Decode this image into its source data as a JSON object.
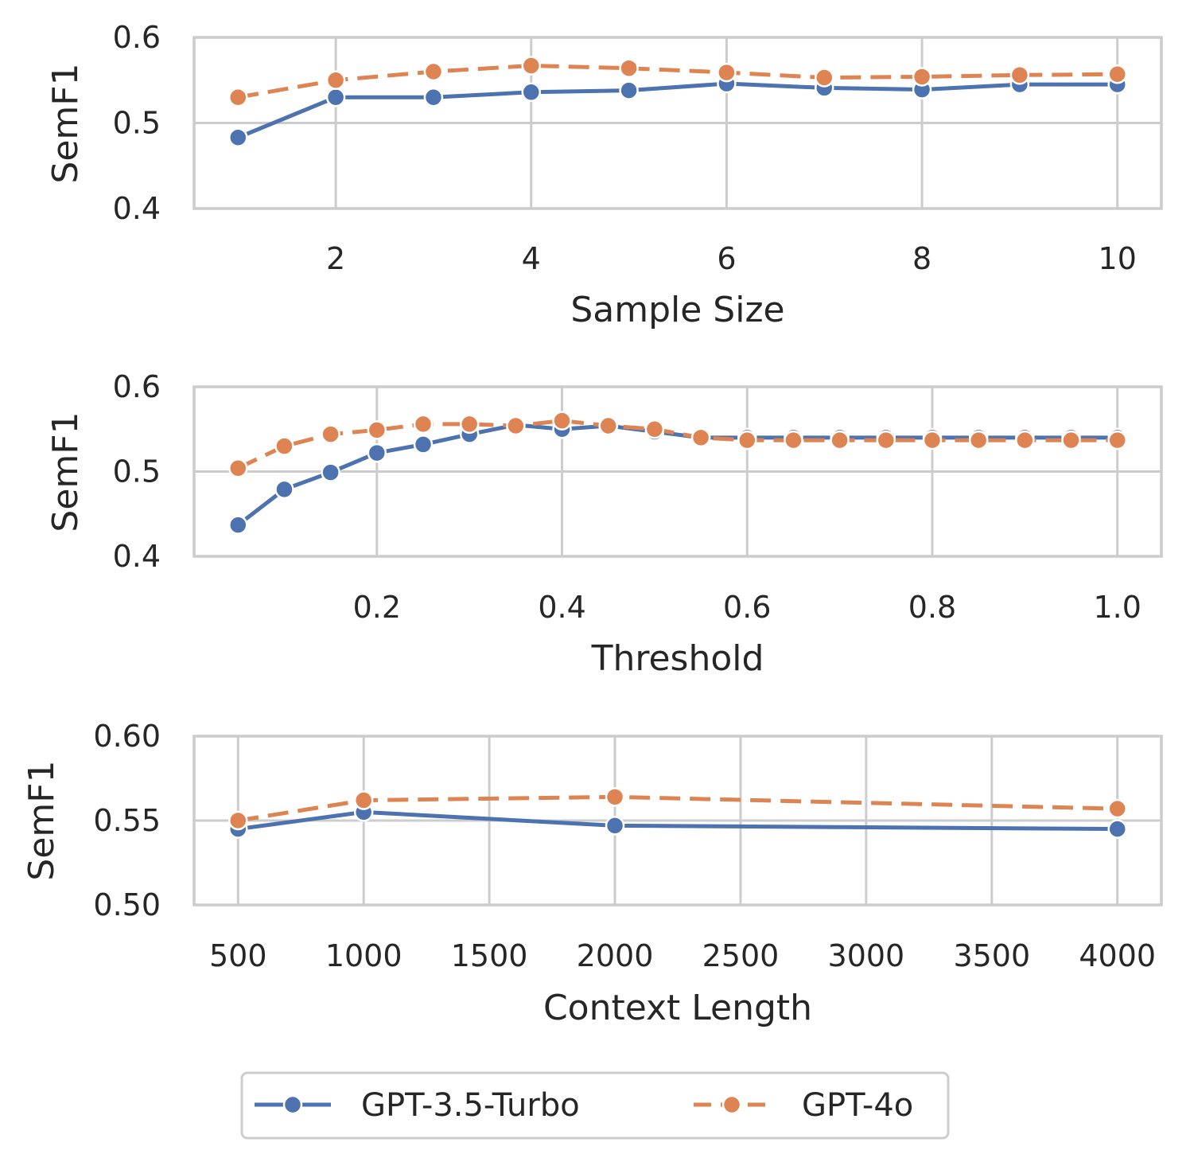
{
  "colors": {
    "series0": "#4c72b0",
    "series1": "#dd8452",
    "grid": "#cccccc",
    "frame": "#cccccc",
    "text": "#262626",
    "background": "#ffffff"
  },
  "legend": {
    "entries": [
      "GPT-3.5-Turbo",
      "GPT-4o"
    ],
    "placement": "bottom-center"
  },
  "chart_data": [
    {
      "type": "line",
      "title": "",
      "xlabel": "Sample Size",
      "ylabel": "SemF1",
      "xlim": [
        0.55,
        10.45
      ],
      "ylim": [
        0.4,
        0.6
      ],
      "xticks": [
        2,
        4,
        6,
        8,
        10
      ],
      "xtick_labels": [
        "2",
        "4",
        "6",
        "8",
        "10"
      ],
      "yticks": [
        0.4,
        0.5,
        0.6
      ],
      "ytick_labels": [
        "0.4",
        "0.5",
        "0.6"
      ],
      "grid": true,
      "x": [
        1,
        2,
        3,
        4,
        5,
        6,
        7,
        8,
        9,
        10
      ],
      "series": [
        {
          "name": "GPT-3.5-Turbo",
          "values": [
            0.483,
            0.53,
            0.53,
            0.536,
            0.538,
            0.546,
            0.541,
            0.539,
            0.545,
            0.545
          ]
        },
        {
          "name": "GPT-4o",
          "values": [
            0.53,
            0.55,
            0.56,
            0.567,
            0.564,
            0.559,
            0.553,
            0.554,
            0.556,
            0.557
          ]
        }
      ]
    },
    {
      "type": "line",
      "title": "",
      "xlabel": "Threshold",
      "ylabel": "SemF1",
      "xlim": [
        0.0025,
        1.0475
      ],
      "ylim": [
        0.4,
        0.6
      ],
      "xticks": [
        0.2,
        0.4,
        0.6,
        0.8,
        1.0
      ],
      "xtick_labels": [
        "0.2",
        "0.4",
        "0.6",
        "0.8",
        "1.0"
      ],
      "yticks": [
        0.4,
        0.5,
        0.6
      ],
      "ytick_labels": [
        "0.4",
        "0.5",
        "0.6"
      ],
      "grid": true,
      "x": [
        0.05,
        0.1,
        0.15,
        0.2,
        0.25,
        0.3,
        0.35,
        0.4,
        0.45,
        0.5,
        0.55,
        0.6,
        0.65,
        0.7,
        0.75,
        0.8,
        0.85,
        0.9,
        0.95,
        1.0
      ],
      "series": [
        {
          "name": "GPT-3.5-Turbo",
          "values": [
            0.437,
            0.479,
            0.499,
            0.522,
            0.532,
            0.544,
            0.555,
            0.55,
            0.554,
            0.547,
            0.54,
            0.54,
            0.54,
            0.54,
            0.54,
            0.54,
            0.54,
            0.54,
            0.54,
            0.54
          ]
        },
        {
          "name": "GPT-4o",
          "values": [
            0.504,
            0.53,
            0.544,
            0.549,
            0.556,
            0.556,
            0.554,
            0.56,
            0.554,
            0.55,
            0.54,
            0.537,
            0.537,
            0.537,
            0.537,
            0.537,
            0.537,
            0.537,
            0.537,
            0.537
          ]
        }
      ]
    },
    {
      "type": "line",
      "title": "",
      "xlabel": "Context Length",
      "ylabel": "SemF1",
      "xlim": [
        325,
        4175
      ],
      "ylim": [
        0.5,
        0.6
      ],
      "xticks": [
        500,
        1000,
        1500,
        2000,
        2500,
        3000,
        3500,
        4000
      ],
      "xtick_labels": [
        "500",
        "1000",
        "1500",
        "2000",
        "2500",
        "3000",
        "3500",
        "4000"
      ],
      "yticks": [
        0.5,
        0.55,
        0.6
      ],
      "ytick_labels": [
        "0.50",
        "0.55",
        "0.60"
      ],
      "grid": true,
      "x": [
        500,
        1000,
        2000,
        4000
      ],
      "series": [
        {
          "name": "GPT-3.5-Turbo",
          "values": [
            0.545,
            0.555,
            0.547,
            0.545
          ]
        },
        {
          "name": "GPT-4o",
          "values": [
            0.55,
            0.562,
            0.564,
            0.557
          ]
        }
      ]
    }
  ]
}
